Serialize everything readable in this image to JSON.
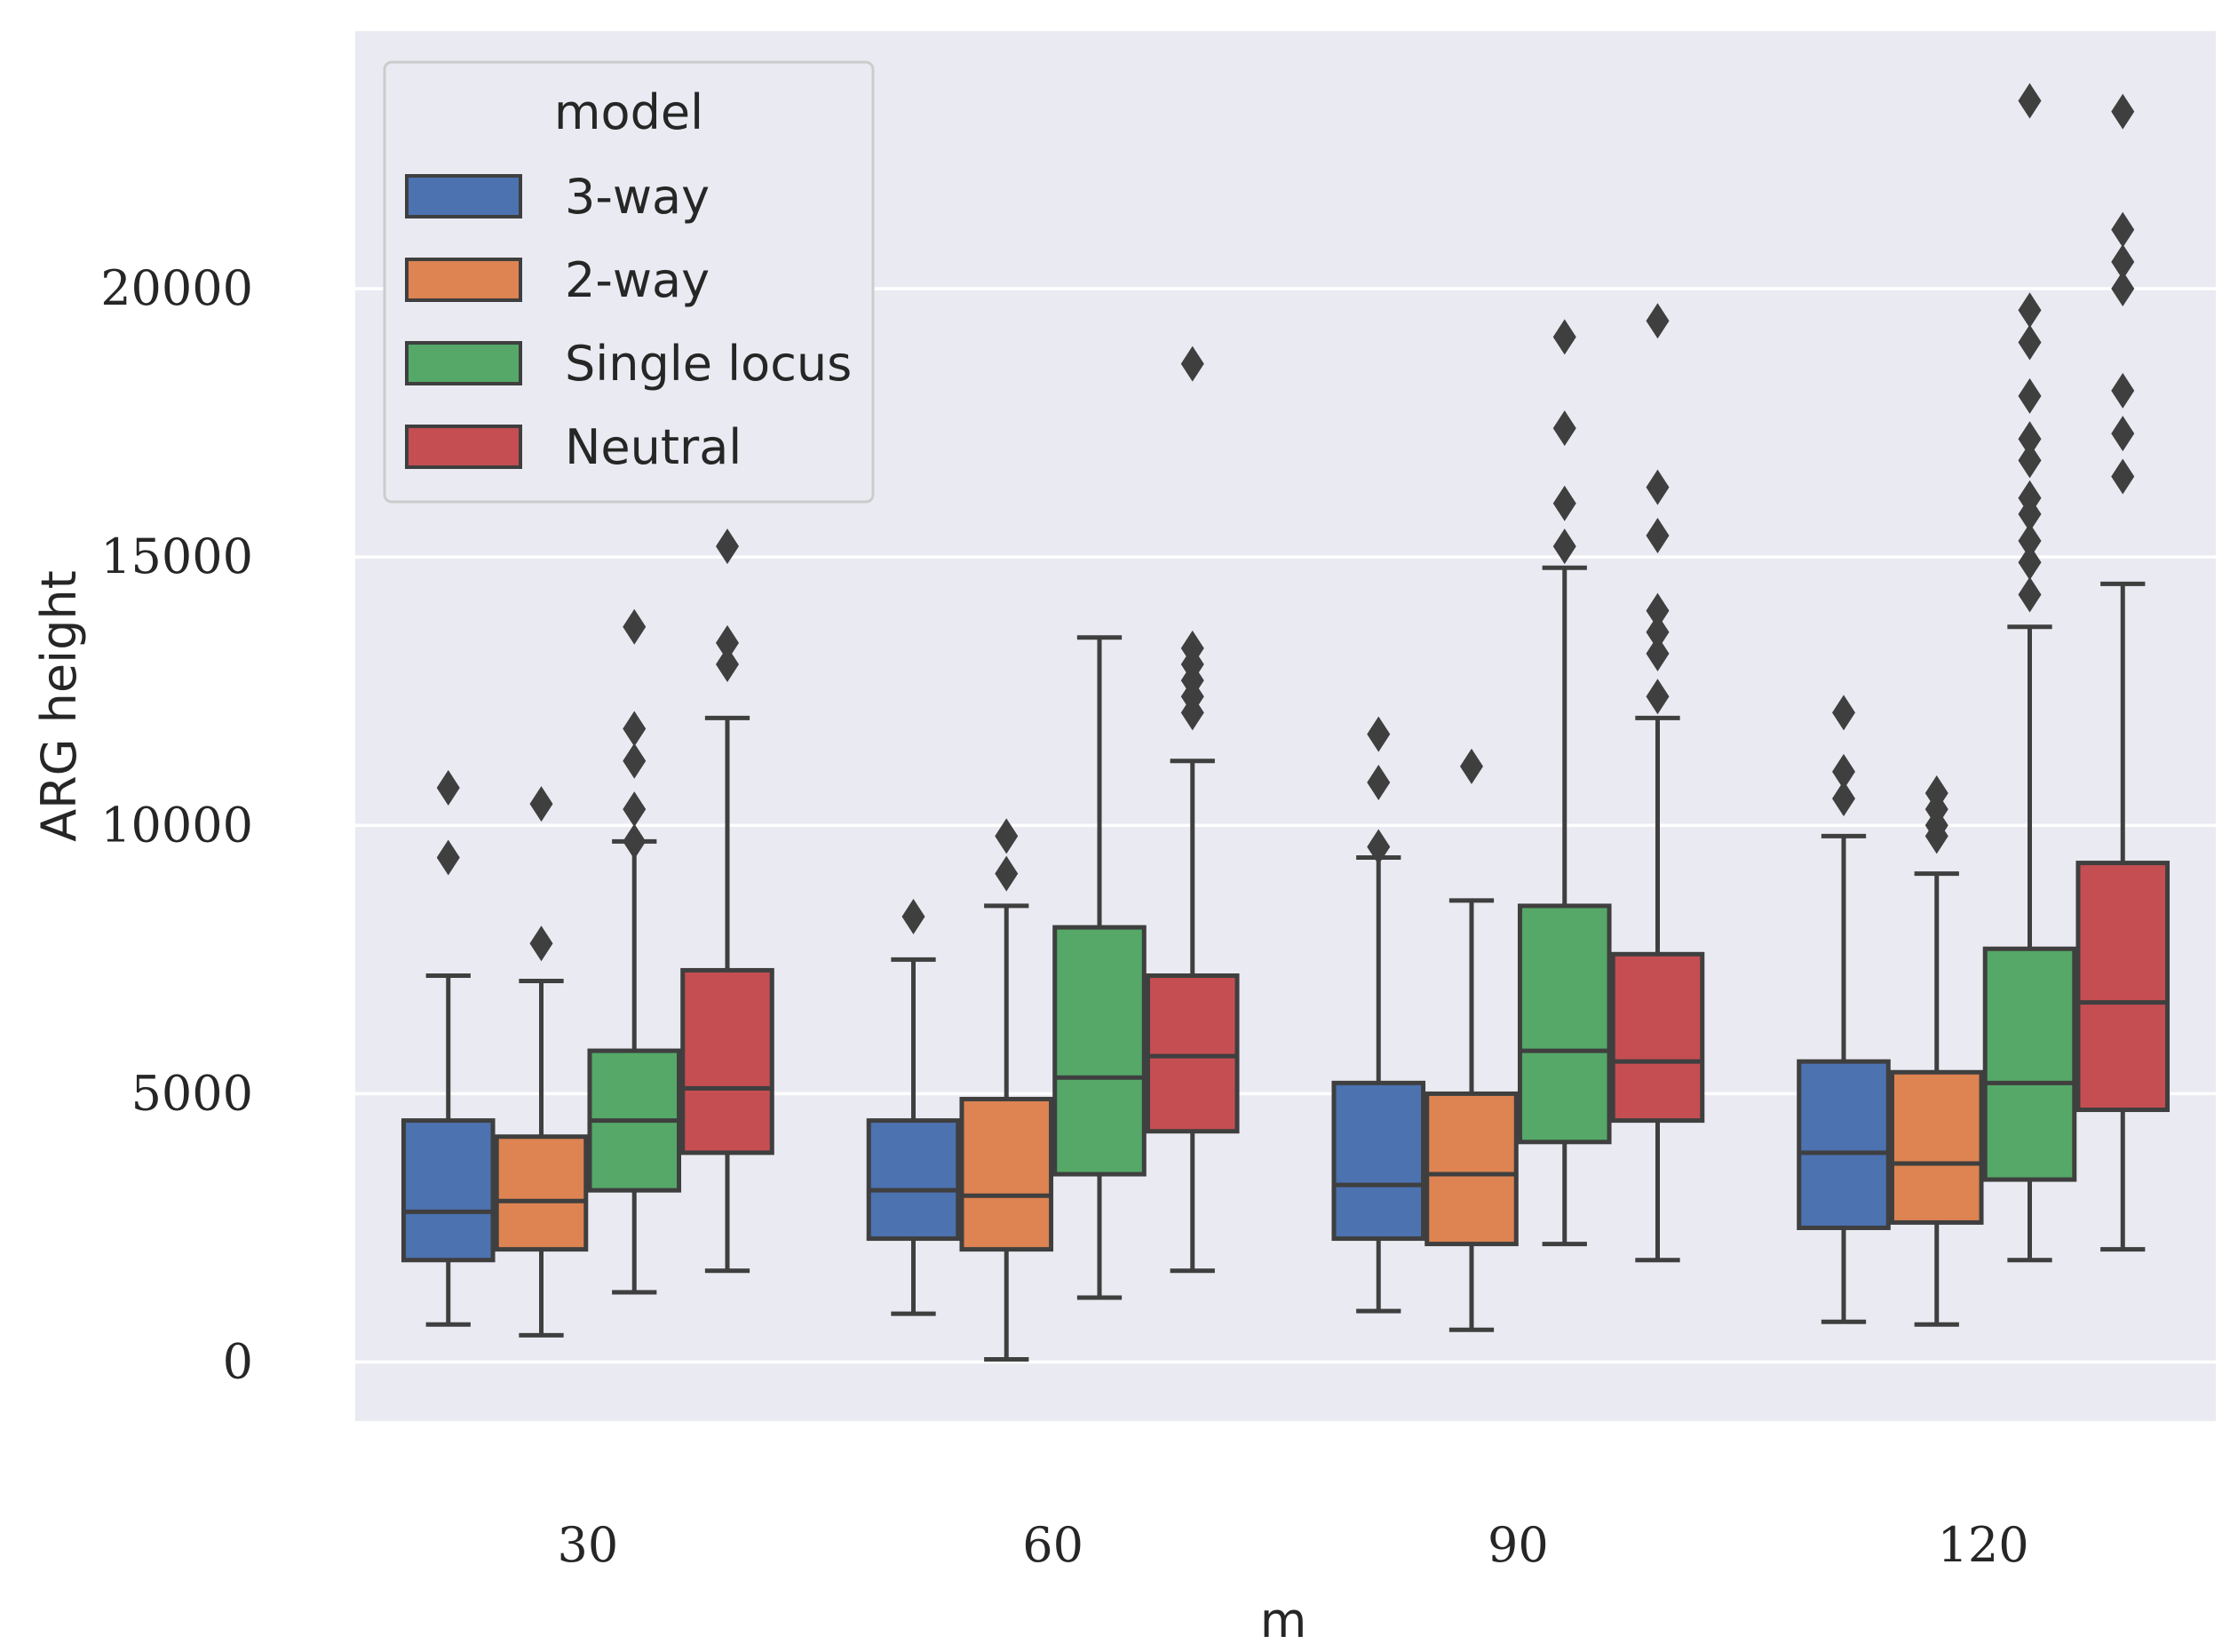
{
  "chart_data": {
    "type": "boxplot",
    "title": "",
    "xlabel": "m",
    "ylabel": "ARG height",
    "categories": [
      "30",
      "60",
      "90",
      "120"
    ],
    "ylim": [
      -1100,
      24800
    ],
    "yticks": [
      0,
      5000,
      10000,
      15000,
      20000
    ],
    "ytick_labels": [
      "0",
      "5000",
      "10000",
      "15000",
      "20000"
    ],
    "grid": true,
    "legend": {
      "title": "model",
      "position": "top-left"
    },
    "series": [
      {
        "name": "3-way",
        "color": "#4c72b0",
        "boxes": [
          {
            "whislo": 700,
            "q1": 1900,
            "med": 2800,
            "q3": 4500,
            "whishi": 7200,
            "fliers": [
              9400,
              10700
            ]
          },
          {
            "whislo": 900,
            "q1": 2300,
            "med": 3200,
            "q3": 4500,
            "whishi": 7500,
            "fliers": [
              8300
            ]
          },
          {
            "whislo": 950,
            "q1": 2300,
            "med": 3300,
            "q3": 5200,
            "whishi": 9400,
            "fliers": [
              9600,
              10800,
              11700
            ]
          },
          {
            "whislo": 750,
            "q1": 2500,
            "med": 3900,
            "q3": 5600,
            "whishi": 9800,
            "fliers": [
              10500,
              11000,
              12100
            ]
          }
        ]
      },
      {
        "name": "2-way",
        "color": "#dd8452",
        "boxes": [
          {
            "whislo": 500,
            "q1": 2100,
            "med": 3000,
            "q3": 4200,
            "whishi": 7100,
            "fliers": [
              7800,
              10400
            ]
          },
          {
            "whislo": 50,
            "q1": 2100,
            "med": 3100,
            "q3": 4900,
            "whishi": 8500,
            "fliers": [
              9100,
              9800
            ]
          },
          {
            "whislo": 600,
            "q1": 2200,
            "med": 3500,
            "q3": 5000,
            "whishi": 8600,
            "fliers": [
              11100
            ]
          },
          {
            "whislo": 700,
            "q1": 2600,
            "med": 3700,
            "q3": 5400,
            "whishi": 9100,
            "fliers": [
              9800,
              10000,
              10300,
              10600
            ]
          }
        ]
      },
      {
        "name": "Single locus",
        "color": "#55a868",
        "boxes": [
          {
            "whislo": 1300,
            "q1": 3200,
            "med": 4500,
            "q3": 5800,
            "whishi": 9700,
            "fliers": [
              9700,
              10300,
              11200,
              11800,
              13700
            ]
          },
          {
            "whislo": 1200,
            "q1": 3500,
            "med": 5300,
            "q3": 8100,
            "whishi": 13500,
            "fliers": []
          },
          {
            "whislo": 2200,
            "q1": 4100,
            "med": 5800,
            "q3": 8500,
            "whishi": 14800,
            "fliers": [
              15200,
              16000,
              17400,
              19100
            ]
          },
          {
            "whislo": 1900,
            "q1": 3400,
            "med": 5200,
            "q3": 7700,
            "whishi": 13700,
            "fliers": [
              14300,
              14900,
              15300,
              15800,
              16100,
              16800,
              17200,
              18000,
              19000,
              19600,
              23500
            ]
          }
        ]
      },
      {
        "name": "Neutral",
        "color": "#c44e52",
        "boxes": [
          {
            "whislo": 1700,
            "q1": 3900,
            "med": 5100,
            "q3": 7300,
            "whishi": 12000,
            "fliers": [
              13000,
              13400,
              15200
            ]
          },
          {
            "whislo": 1700,
            "q1": 4300,
            "med": 5700,
            "q3": 7200,
            "whishi": 11200,
            "fliers": [
              12100,
              12400,
              12700,
              13000,
              13300,
              18600
            ]
          },
          {
            "whislo": 1900,
            "q1": 4500,
            "med": 5600,
            "q3": 7600,
            "whishi": 12000,
            "fliers": [
              12400,
              13200,
              13600,
              14000,
              15400,
              16300,
              19400
            ]
          },
          {
            "whislo": 2100,
            "q1": 4700,
            "med": 6700,
            "q3": 9300,
            "whishi": 14500,
            "fliers": [
              16500,
              17300,
              18100,
              20000,
              20500,
              21100,
              23300
            ]
          }
        ]
      }
    ]
  }
}
